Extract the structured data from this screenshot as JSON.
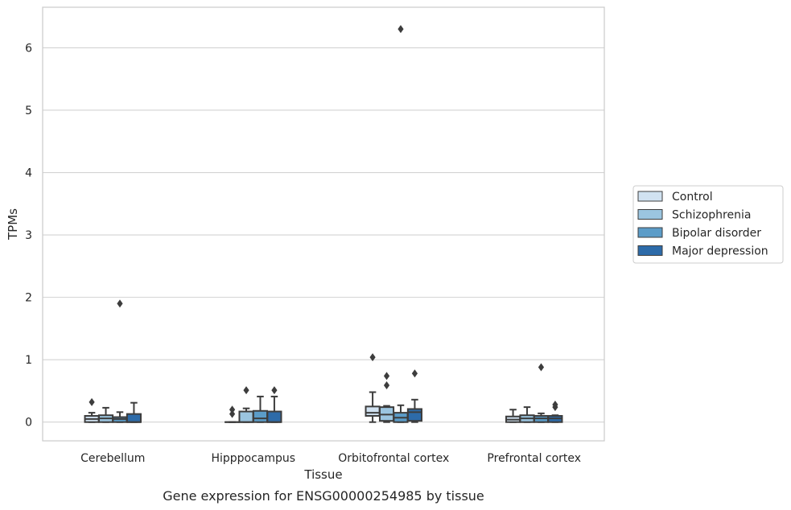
{
  "caption": "Gene expression for ENSG00000254985 by tissue",
  "chart_data": {
    "type": "box",
    "xlabel": "Tissue",
    "ylabel": "TPMs",
    "ylim": [
      -0.3,
      6.65
    ],
    "yticks": [
      0,
      1,
      2,
      3,
      4,
      5,
      6
    ],
    "grid": "horizontal",
    "legend_position": "right",
    "categories": [
      "Cerebellum",
      "Hipppocampus",
      "Orbitofrontal cortex",
      "Prefrontal cortex"
    ],
    "series": [
      {
        "name": "Control",
        "color": "#d1e2f1",
        "boxes": [
          {
            "whislo": 0.0,
            "q1": 0.0,
            "med": 0.05,
            "q3": 0.1,
            "whishi": 0.15,
            "fliers": [
              0.32
            ]
          },
          {
            "whislo": 0.0,
            "q1": 0.0,
            "med": 0.0,
            "q3": 0.0,
            "whishi": 0.0,
            "fliers": [
              0.13,
              0.2
            ]
          },
          {
            "whislo": 0.0,
            "q1": 0.1,
            "med": 0.15,
            "q3": 0.25,
            "whishi": 0.48,
            "fliers": [
              1.04
            ]
          },
          {
            "whislo": 0.0,
            "q1": 0.0,
            "med": 0.04,
            "q3": 0.09,
            "whishi": 0.2,
            "fliers": []
          }
        ]
      },
      {
        "name": "Schizophrenia",
        "color": "#9bc5e0",
        "boxes": [
          {
            "whislo": 0.0,
            "q1": 0.0,
            "med": 0.06,
            "q3": 0.11,
            "whishi": 0.23,
            "fliers": []
          },
          {
            "whislo": 0.0,
            "q1": 0.0,
            "med": 0.0,
            "q3": 0.17,
            "whishi": 0.22,
            "fliers": [
              0.51
            ]
          },
          {
            "whislo": 0.0,
            "q1": 0.02,
            "med": 0.12,
            "q3": 0.24,
            "whishi": 0.26,
            "fliers": [
              0.59,
              0.74
            ]
          },
          {
            "whislo": 0.0,
            "q1": 0.0,
            "med": 0.06,
            "q3": 0.11,
            "whishi": 0.24,
            "fliers": []
          }
        ]
      },
      {
        "name": "Bipolar disorder",
        "color": "#5b9cc8",
        "boxes": [
          {
            "whislo": 0.0,
            "q1": 0.0,
            "med": 0.05,
            "q3": 0.08,
            "whishi": 0.16,
            "fliers": [
              1.9
            ]
          },
          {
            "whislo": 0.0,
            "q1": 0.0,
            "med": 0.06,
            "q3": 0.18,
            "whishi": 0.41,
            "fliers": []
          },
          {
            "whislo": 0.0,
            "q1": 0.0,
            "med": 0.07,
            "q3": 0.15,
            "whishi": 0.27,
            "fliers": [
              6.3
            ]
          },
          {
            "whislo": 0.0,
            "q1": 0.0,
            "med": 0.06,
            "q3": 0.1,
            "whishi": 0.14,
            "fliers": [
              0.88
            ]
          }
        ]
      },
      {
        "name": "Major depression",
        "color": "#2d6ba9",
        "boxes": [
          {
            "whislo": 0.0,
            "q1": 0.0,
            "med": 0.0,
            "q3": 0.13,
            "whishi": 0.31,
            "fliers": []
          },
          {
            "whislo": 0.0,
            "q1": 0.0,
            "med": 0.0,
            "q3": 0.17,
            "whishi": 0.41,
            "fliers": [
              0.51
            ]
          },
          {
            "whislo": 0.0,
            "q1": 0.02,
            "med": 0.16,
            "q3": 0.21,
            "whishi": 0.36,
            "fliers": [
              0.78
            ]
          },
          {
            "whislo": 0.0,
            "q1": 0.0,
            "med": 0.06,
            "q3": 0.1,
            "whishi": 0.11,
            "fliers": [
              0.24,
              0.28
            ]
          }
        ]
      }
    ]
  }
}
